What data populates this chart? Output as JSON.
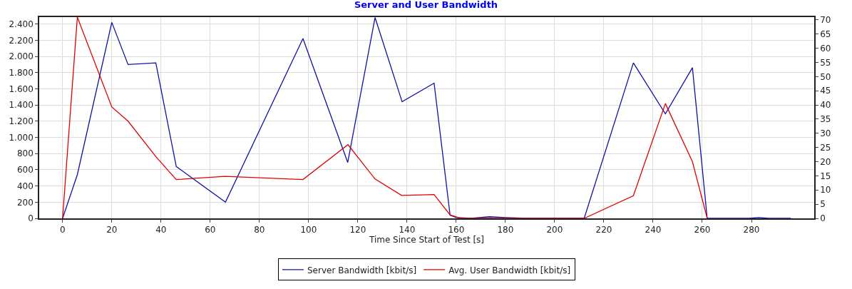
{
  "chart_data": {
    "type": "line",
    "title": "Server and User Bandwidth",
    "xlabel": "Time Since Start of Test [s]",
    "series": [
      {
        "name": "Server Bandwidth [kbit/s]",
        "color": "#1010a8",
        "axis": "y",
        "x": [
          0,
          6,
          20,
          26.6,
          37.9,
          46.2,
          66.2,
          97.7,
          115.9,
          127,
          138,
          151,
          157.5,
          160,
          166,
          173.5,
          180,
          189,
          212,
          232,
          245,
          256,
          262,
          279,
          283,
          287,
          296
        ],
        "values": [
          0,
          540,
          2420,
          1900,
          1920,
          640,
          200,
          2220,
          690,
          2480,
          1440,
          1670,
          40,
          10,
          0,
          20,
          10,
          0,
          0,
          1920,
          1290,
          1860,
          0,
          0,
          10,
          0,
          0
        ]
      },
      {
        "name": "Avg. User Bandwidth [kbit/s]",
        "color": "#e00000",
        "axis": "y2",
        "x": [
          0,
          6,
          20,
          26.6,
          38,
          46.2,
          66,
          97.7,
          116,
          127,
          137.8,
          151,
          157.5,
          162,
          212,
          232,
          245,
          256,
          262
        ],
        "values": [
          0,
          71,
          39.3,
          34.3,
          21.7,
          13.7,
          14.8,
          13.7,
          26,
          13.9,
          8.1,
          8.4,
          1.2,
          0,
          0,
          8,
          40.5,
          20,
          0
        ]
      }
    ],
    "xlim": [
      -9.5,
      305.5
    ],
    "xticks": [
      0,
      20,
      40,
      60,
      80,
      100,
      120,
      140,
      160,
      180,
      200,
      220,
      240,
      260,
      280
    ],
    "ylim": [
      0,
      2485
    ],
    "yticks": [
      {
        "value": 0,
        "label": "0"
      },
      {
        "value": 200,
        "label": "200"
      },
      {
        "value": 400,
        "label": "400"
      },
      {
        "value": 600,
        "label": "600"
      },
      {
        "value": 800,
        "label": "800"
      },
      {
        "value": 1000,
        "label": "1.000"
      },
      {
        "value": 1200,
        "label": "1.200"
      },
      {
        "value": 1400,
        "label": "1.400"
      },
      {
        "value": 1600,
        "label": "1.600"
      },
      {
        "value": 1800,
        "label": "1.800"
      },
      {
        "value": 2000,
        "label": "2.000"
      },
      {
        "value": 2200,
        "label": "2.200"
      },
      {
        "value": 2400,
        "label": "2.400"
      }
    ],
    "y2lim": [
      0,
      71
    ],
    "y2ticks": [
      0,
      5,
      10,
      15,
      20,
      25,
      30,
      35,
      40,
      45,
      50,
      55,
      60,
      65,
      70
    ],
    "grid": true,
    "legend": "bottom",
    "marker": "none",
    "line_style": "solid"
  }
}
